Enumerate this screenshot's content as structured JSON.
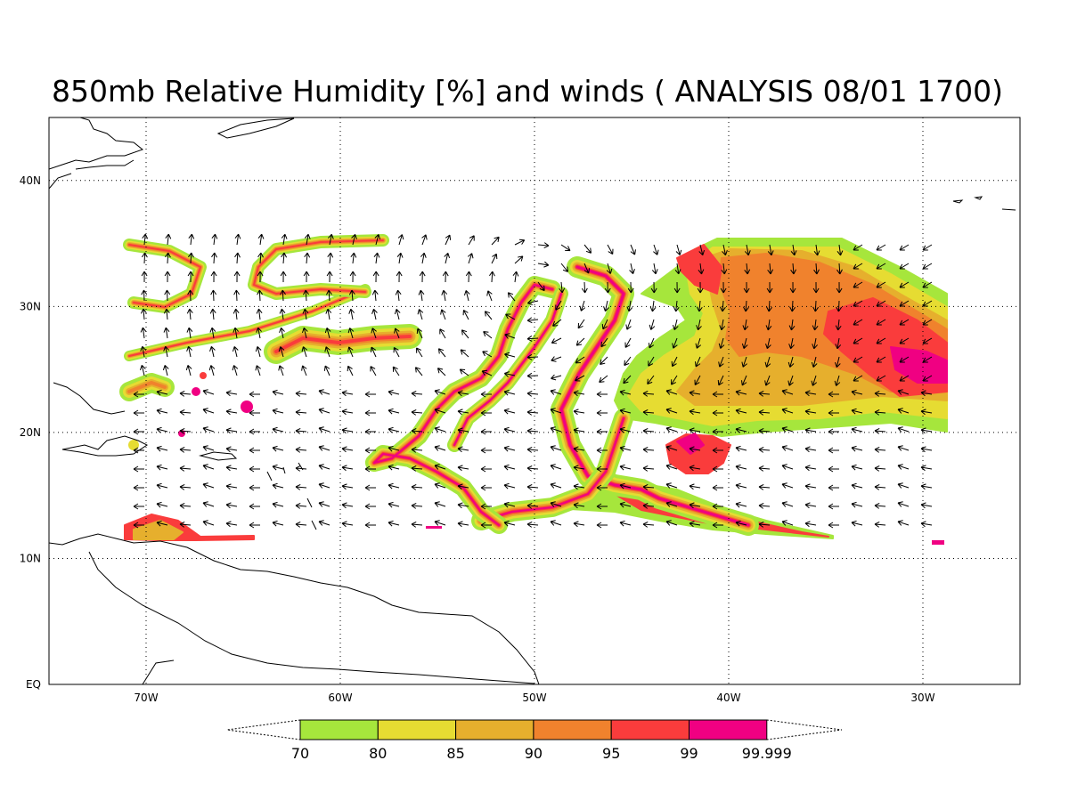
{
  "title": "850mb Relative Humidity [%] and winds ( ANALYSIS 08/01 1700)",
  "map": {
    "lon_range": [
      -75,
      -25
    ],
    "lat_range": [
      0,
      45
    ],
    "lon_ticks": [
      {
        "value": -70,
        "label": "70W"
      },
      {
        "value": -60,
        "label": "60W"
      },
      {
        "value": -50,
        "label": "50W"
      },
      {
        "value": -40,
        "label": "40W"
      },
      {
        "value": -30,
        "label": "30W"
      }
    ],
    "lat_ticks": [
      {
        "value": 0,
        "label": "EQ"
      },
      {
        "value": 10,
        "label": "10N"
      },
      {
        "value": 20,
        "label": "20N"
      },
      {
        "value": 30,
        "label": "30N"
      },
      {
        "value": 40,
        "label": "40N"
      }
    ],
    "grid": "dotted"
  },
  "colorbar": {
    "levels": [
      "70",
      "80",
      "85",
      "90",
      "95",
      "99",
      "99.999"
    ],
    "colors": [
      "#a6e63c",
      "#e6dc32",
      "#e6af2d",
      "#f0822d",
      "#fa3c3c",
      "#f00082"
    ]
  },
  "colors": {
    "coast": "#000000",
    "wind_arrow": "#000000"
  }
}
